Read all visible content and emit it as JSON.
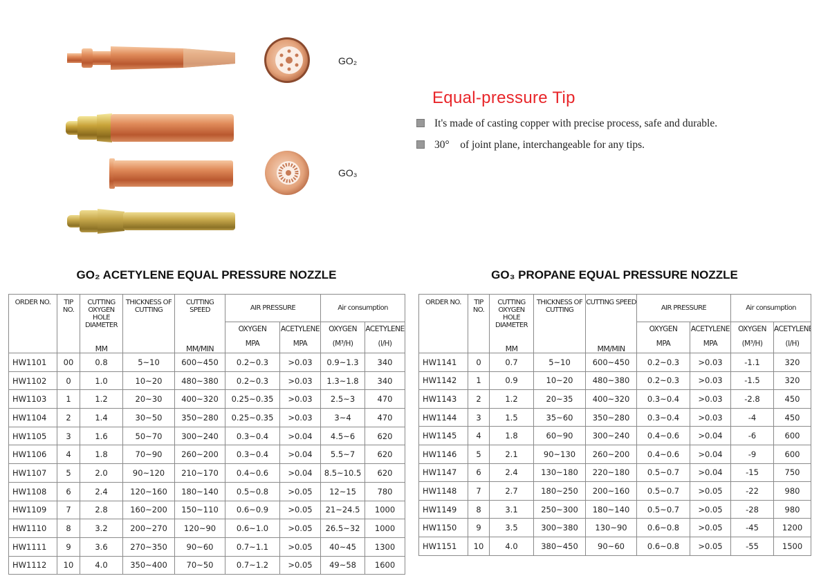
{
  "product": {
    "labels": [
      "GO₂",
      "GO₃"
    ],
    "heading": "Equal-pressure Tip",
    "bullets": [
      "It's made of casting copper with precise process, safe and durable.",
      "30°    of joint plane, interchangeable for any tips."
    ]
  },
  "tables": [
    {
      "title": "GO₂ ACETYLENE EQUAL PRESSURE NOZZLE",
      "header": {
        "columns": [
          {
            "label": "ORDER NO."
          },
          {
            "label": "TIP NO."
          },
          {
            "label": "CUTTING OXYGEN HOLE DIAMETER",
            "unit": "MM"
          },
          {
            "label": "THICKNESS OF CUTTING"
          },
          {
            "label": "CUTTING SPEED",
            "unit": "MM/MIN"
          }
        ],
        "groups": [
          {
            "label": "AIR PRESSURE",
            "columns": [
              {
                "label": "OXYGEN",
                "unit": "MPA"
              },
              {
                "label": "ACETYLENE",
                "unit": "MPA"
              }
            ]
          },
          {
            "label": "Air consumption",
            "columns": [
              {
                "label": "OXYGEN",
                "unit": "(M³/H)"
              },
              {
                "label": "ACETYLENE",
                "unit": "(l/H)"
              }
            ]
          }
        ]
      },
      "rows": [
        [
          "HW1101",
          "00",
          "0.8",
          "5~10",
          "600~450",
          "0.2~0.3",
          ">0.03",
          "0.9~1.3",
          "340"
        ],
        [
          "HW1102",
          "0",
          "1.0",
          "10~20",
          "480~380",
          "0.2~0.3",
          ">0.03",
          "1.3~1.8",
          "340"
        ],
        [
          "HW1103",
          "1",
          "1.2",
          "20~30",
          "400~320",
          "0.25~0.35",
          ">0.03",
          "2.5~3",
          "470"
        ],
        [
          "HW1104",
          "2",
          "1.4",
          "30~50",
          "350~280",
          "0.25~0.35",
          ">0.03",
          "3~4",
          "470"
        ],
        [
          "HW1105",
          "3",
          "1.6",
          "50~70",
          "300~240",
          "0.3~0.4",
          ">0.04",
          "4.5~6",
          "620"
        ],
        [
          "HW1106",
          "4",
          "1.8",
          "70~90",
          "260~200",
          "0.3~0.4",
          ">0.04",
          "5.5~7",
          "620"
        ],
        [
          "HW1107",
          "5",
          "2.0",
          "90~120",
          "210~170",
          "0.4~0.6",
          ">0.04",
          "8.5~10.5",
          "620"
        ],
        [
          "HW1108",
          "6",
          "2.4",
          "120~160",
          "180~140",
          "0.5~0.8",
          ">0.05",
          "12~15",
          "780"
        ],
        [
          "HW1109",
          "7",
          "2.8",
          "160~200",
          "150~110",
          "0.6~0.9",
          ">0.05",
          "21~24.5",
          "1000"
        ],
        [
          "HW1110",
          "8",
          "3.2",
          "200~270",
          "120~90",
          "0.6~1.0",
          ">0.05",
          "26.5~32",
          "1000"
        ],
        [
          "HW1111",
          "9",
          "3.6",
          "270~350",
          "90~60",
          "0.7~1.1",
          ">0.05",
          "40~45",
          "1300"
        ],
        [
          "HW1112",
          "10",
          "4.0",
          "350~400",
          "70~50",
          "0.7~1.2",
          ">0.05",
          "49~58",
          "1600"
        ]
      ]
    },
    {
      "title": "GO₃ PROPANE EQUAL PRESSURE NOZZLE",
      "header": {
        "columns": [
          {
            "label": "ORDER NO."
          },
          {
            "label": "TIP NO."
          },
          {
            "label": "CUTTING OXYGEN HOLE DIAMETER",
            "unit": "MM"
          },
          {
            "label": "THICKNESS OF CUTTING"
          },
          {
            "label": "CUTTING SPEED",
            "unit": "MM/MIN"
          }
        ],
        "groups": [
          {
            "label": "AIR PRESSURE",
            "columns": [
              {
                "label": "OXYGEN",
                "unit": "MPA"
              },
              {
                "label": "ACETYLENE",
                "unit": "MPA"
              }
            ]
          },
          {
            "label": "Air consumption",
            "columns": [
              {
                "label": "OXYGEN",
                "unit": "(M³/H)"
              },
              {
                "label": "ACETYLENE",
                "unit": "(l/H)"
              }
            ]
          }
        ]
      },
      "rows": [
        [
          "HW1141",
          "0",
          "0.7",
          "5~10",
          "600~450",
          "0.2~0.3",
          ">0.03",
          "-1.1",
          "320"
        ],
        [
          "HW1142",
          "1",
          "0.9",
          "10~20",
          "480~380",
          "0.2~0.3",
          ">0.03",
          "-1.5",
          "320"
        ],
        [
          "HW1143",
          "2",
          "1.2",
          "20~35",
          "400~320",
          "0.3~0.4",
          ">0.03",
          "-2.8",
          "450"
        ],
        [
          "HW1144",
          "3",
          "1.5",
          "35~60",
          "350~280",
          "0.3~0.4",
          ">0.03",
          "-4",
          "450"
        ],
        [
          "HW1145",
          "4",
          "1.8",
          "60~90",
          "300~240",
          "0.4~0.6",
          ">0.04",
          "-6",
          "600"
        ],
        [
          "HW1146",
          "5",
          "2.1",
          "90~130",
          "260~200",
          "0.4~0.6",
          ">0.04",
          "-9",
          "600"
        ],
        [
          "HW1147",
          "6",
          "2.4",
          "130~180",
          "220~180",
          "0.5~0.7",
          ">0.04",
          "-15",
          "750"
        ],
        [
          "HW1148",
          "7",
          "2.7",
          "180~250",
          "200~160",
          "0.5~0.7",
          ">0.05",
          "-22",
          "980"
        ],
        [
          "HW1149",
          "8",
          "3.1",
          "250~300",
          "180~140",
          "0.5~0.7",
          ">0.05",
          "-28",
          "980"
        ],
        [
          "HW1150",
          "9",
          "3.5",
          "300~380",
          "130~90",
          "0.6~0.8",
          ">0.05",
          "-45",
          "1200"
        ],
        [
          "HW1151",
          "10",
          "4.0",
          "380~450",
          "90~60",
          "0.6~0.8",
          ">0.05",
          "-55",
          "1500"
        ]
      ]
    }
  ]
}
